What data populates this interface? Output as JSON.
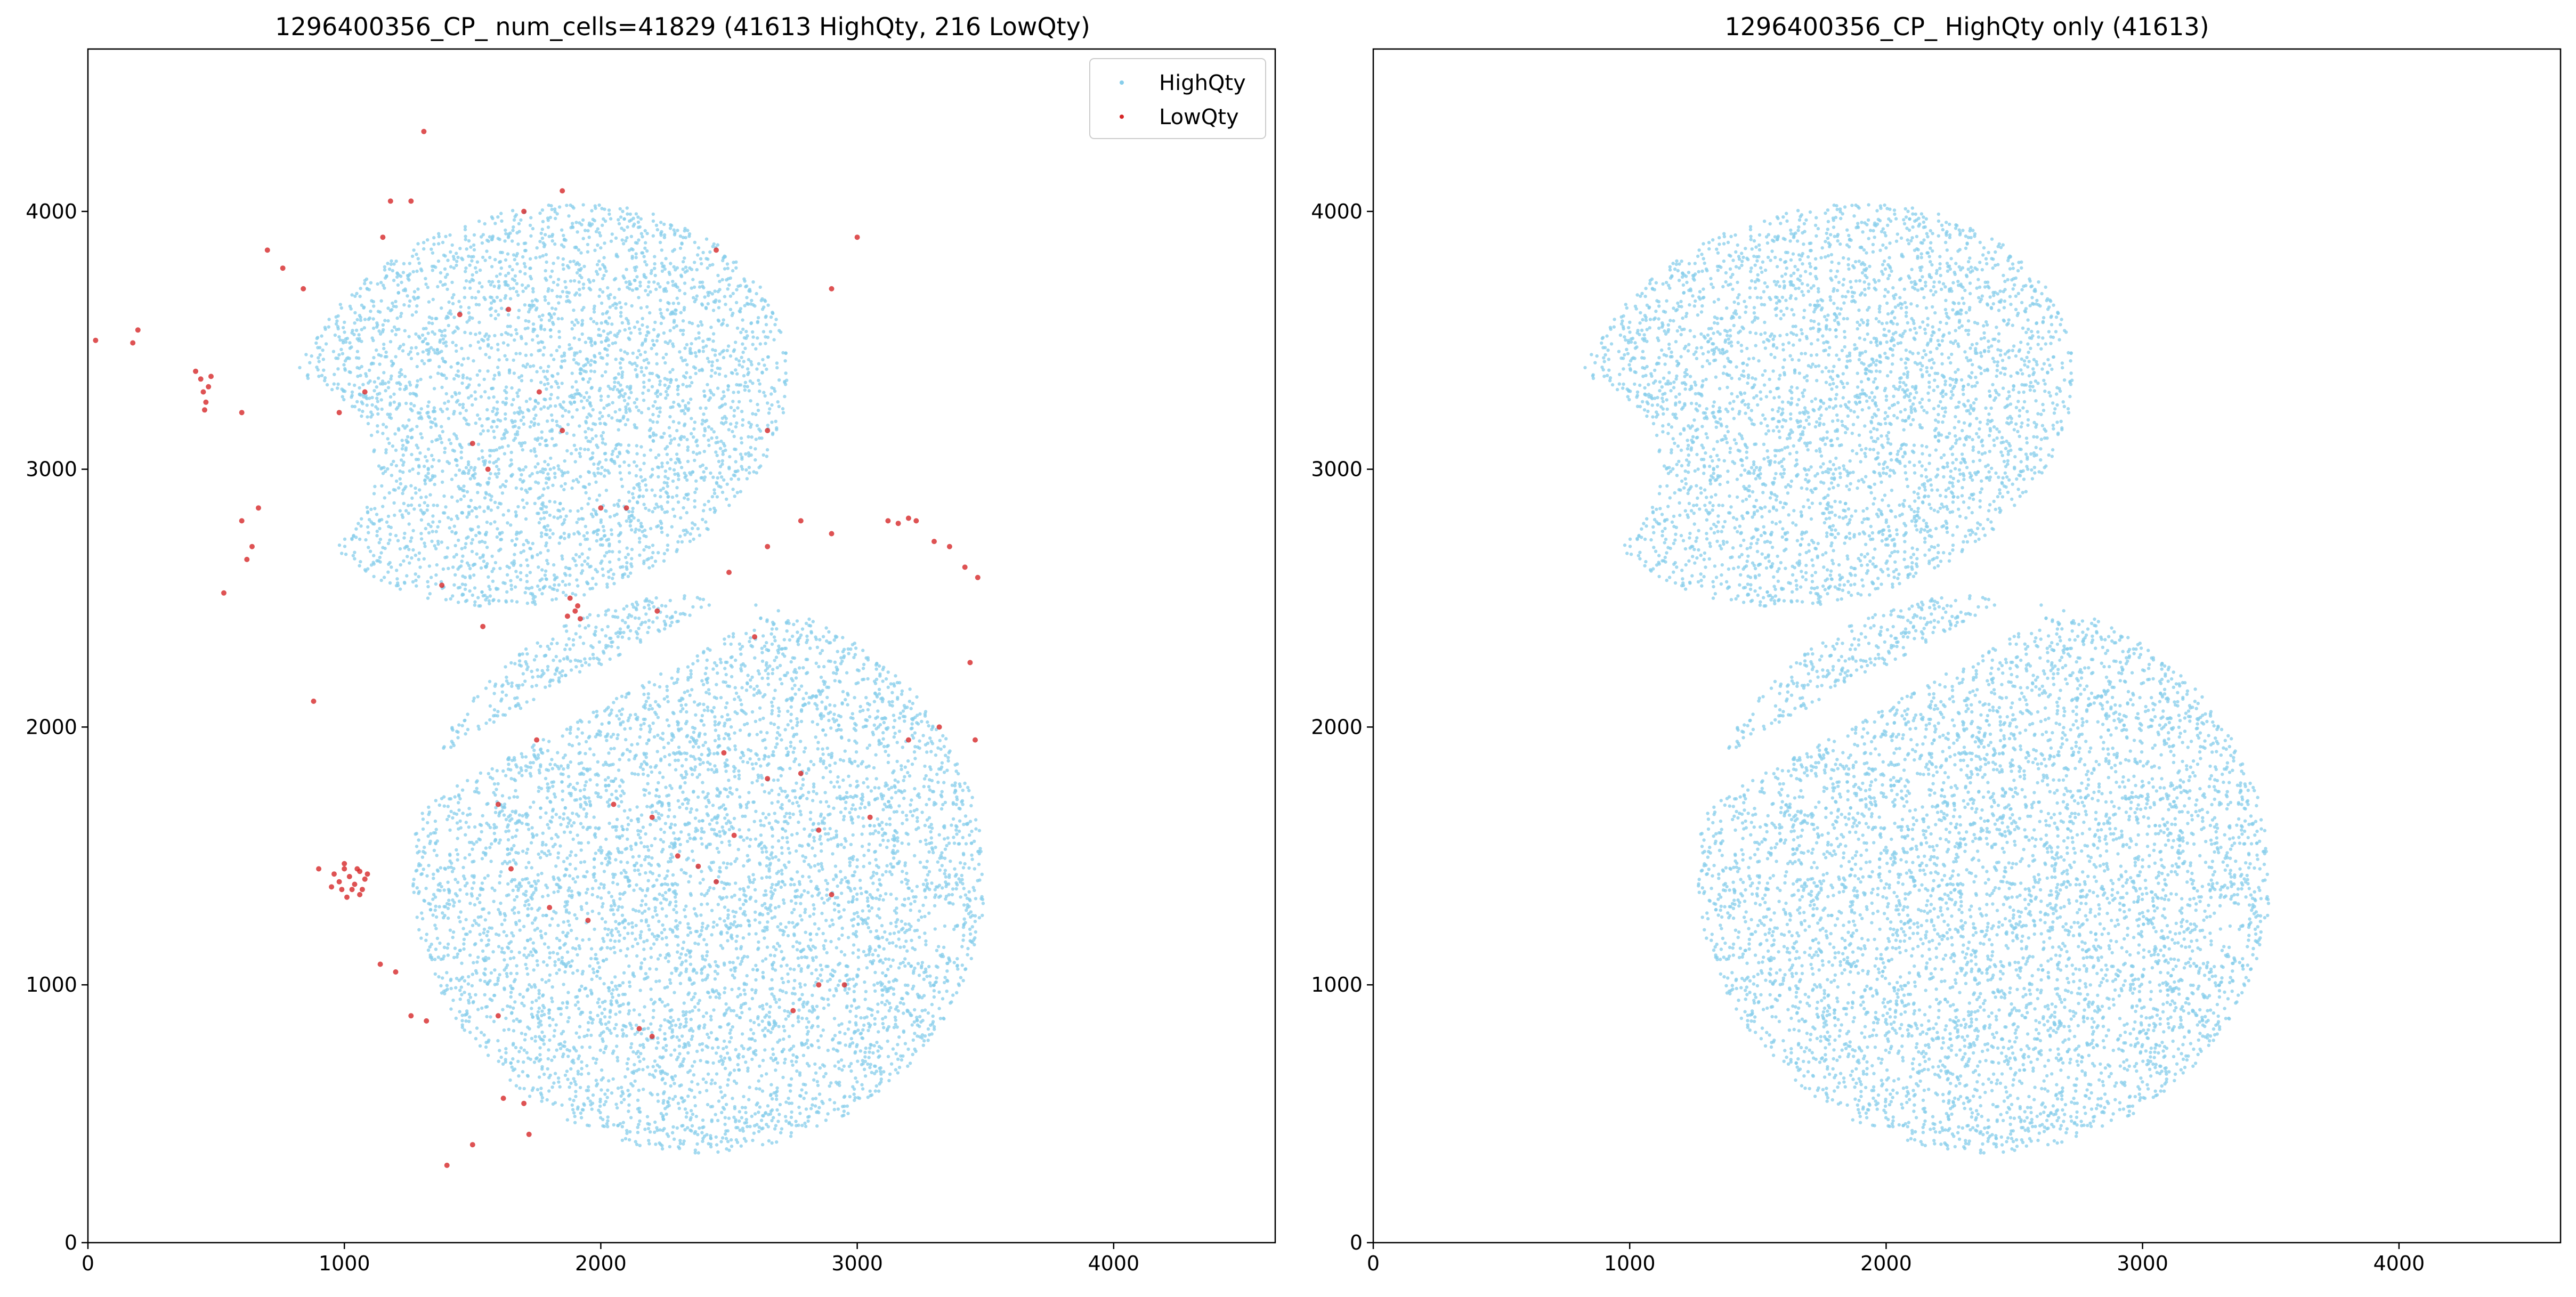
{
  "chart_data": [
    {
      "type": "scatter",
      "title": "1296400356_CP_ num_cells=41829 (41613 HighQty, 216 LowQty)",
      "xlabel": "",
      "ylabel": "",
      "xlim": [
        0,
        4630
      ],
      "ylim": [
        0,
        4630
      ],
      "xticks": [
        0,
        1000,
        2000,
        3000,
        4000
      ],
      "yticks": [
        0,
        1000,
        2000,
        3000,
        4000
      ],
      "grid": false,
      "legend": {
        "position": "top-right",
        "entries": [
          {
            "label": "HighQty",
            "color": "#87ceeb"
          },
          {
            "label": "LowQty",
            "color": "#d62728"
          }
        ]
      },
      "series": [
        {
          "name": "HighQty",
          "color": "#87ceeb",
          "count": 41613,
          "description_regions": [
            {
              "shape": "ring",
              "center": [
                1800,
                3250
              ],
              "rx": 1050,
              "ry": 900
            },
            {
              "shape": "ring",
              "center": [
                2400,
                1400
              ],
              "rx": 1150,
              "ry": 1100
            }
          ]
        },
        {
          "name": "LowQty",
          "color": "#d62728",
          "count": 216,
          "points": [
            [
              30,
              3500
            ],
            [
              175,
              3490
            ],
            [
              195,
              3540
            ],
            [
              420,
              3380
            ],
            [
              440,
              3350
            ],
            [
              450,
              3300
            ],
            [
              460,
              3260
            ],
            [
              470,
              3320
            ],
            [
              455,
              3230
            ],
            [
              480,
              3360
            ],
            [
              600,
              2800
            ],
            [
              640,
              2700
            ],
            [
              665,
              2850
            ],
            [
              530,
              2520
            ],
            [
              620,
              2650
            ],
            [
              700,
              3850
            ],
            [
              760,
              3780
            ],
            [
              840,
              3700
            ],
            [
              980,
              3220
            ],
            [
              1080,
              3300
            ],
            [
              1150,
              3900
            ],
            [
              1180,
              4040
            ],
            [
              1260,
              4040
            ],
            [
              1310,
              4310
            ],
            [
              1450,
              3600
            ],
            [
              1500,
              3100
            ],
            [
              1560,
              3000
            ],
            [
              1640,
              3620
            ],
            [
              1760,
              3300
            ],
            [
              1850,
              3150
            ],
            [
              2000,
              2850
            ],
            [
              1880,
              2500
            ],
            [
              1900,
              2450
            ],
            [
              1920,
              2420
            ],
            [
              1870,
              2430
            ],
            [
              1910,
              2470
            ],
            [
              1380,
              2550
            ],
            [
              1540,
              2390
            ],
            [
              2220,
              2450
            ],
            [
              2500,
              2600
            ],
            [
              2650,
              2700
            ],
            [
              2780,
              2800
            ],
            [
              2900,
              2750
            ],
            [
              3120,
              2800
            ],
            [
              3160,
              2790
            ],
            [
              3200,
              2810
            ],
            [
              3230,
              2800
            ],
            [
              3300,
              2720
            ],
            [
              3360,
              2700
            ],
            [
              3420,
              2620
            ],
            [
              3470,
              2580
            ],
            [
              3440,
              2250
            ],
            [
              3320,
              2000
            ],
            [
              3460,
              1950
            ],
            [
              880,
              2100
            ],
            [
              900,
              1450
            ],
            [
              960,
              1430
            ],
            [
              980,
              1400
            ],
            [
              1000,
              1450
            ],
            [
              1020,
              1420
            ],
            [
              1040,
              1390
            ],
            [
              1060,
              1440
            ],
            [
              1080,
              1410
            ],
            [
              990,
              1370
            ],
            [
              1030,
              1370
            ],
            [
              1070,
              1370
            ],
            [
              1000,
              1470
            ],
            [
              1050,
              1450
            ],
            [
              950,
              1380
            ],
            [
              1010,
              1340
            ],
            [
              1060,
              1350
            ],
            [
              1090,
              1430
            ],
            [
              1140,
              1080
            ],
            [
              1200,
              1050
            ],
            [
              1260,
              880
            ],
            [
              1320,
              860
            ],
            [
              1600,
              1700
            ],
            [
              1650,
              1450
            ],
            [
              1800,
              1300
            ],
            [
              1950,
              1250
            ],
            [
              2050,
              1700
            ],
            [
              2200,
              1650
            ],
            [
              2300,
              1500
            ],
            [
              2380,
              1460
            ],
            [
              2450,
              1400
            ],
            [
              2520,
              1580
            ],
            [
              2650,
              1800
            ],
            [
              2780,
              1820
            ],
            [
              2850,
              1600
            ],
            [
              2900,
              1350
            ],
            [
              2950,
              1000
            ],
            [
              2850,
              1000
            ],
            [
              2750,
              900
            ],
            [
              2200,
              800
            ],
            [
              2150,
              830
            ],
            [
              1600,
              880
            ],
            [
              1620,
              560
            ],
            [
              1700,
              540
            ],
            [
              1720,
              420
            ],
            [
              1500,
              380
            ],
            [
              1400,
              300
            ],
            [
              1750,
              1950
            ],
            [
              2600,
              2350
            ],
            [
              2480,
              1900
            ],
            [
              3050,
              1650
            ],
            [
              3200,
              1950
            ],
            [
              2100,
              2850
            ],
            [
              600,
              3220
            ],
            [
              2650,
              3150
            ],
            [
              2900,
              3700
            ],
            [
              3000,
              3900
            ],
            [
              2450,
              3850
            ],
            [
              1700,
              4000
            ],
            [
              1850,
              4080
            ]
          ]
        }
      ]
    },
    {
      "type": "scatter",
      "title": "1296400356_CP_ HighQty only (41613)",
      "xlabel": "",
      "ylabel": "",
      "xlim": [
        0,
        4630
      ],
      "ylim": [
        0,
        4630
      ],
      "xticks": [
        0,
        1000,
        2000,
        3000,
        4000
      ],
      "yticks": [
        0,
        1000,
        2000,
        3000,
        4000
      ],
      "grid": false,
      "series": [
        {
          "name": "HighQty",
          "color": "#87ceeb",
          "count": 41613,
          "description_regions": [
            {
              "shape": "ring",
              "center": [
                1800,
                3250
              ],
              "rx": 1050,
              "ry": 900
            },
            {
              "shape": "ring",
              "center": [
                2400,
                1400
              ],
              "rx": 1150,
              "ry": 1100
            }
          ]
        }
      ]
    }
  ]
}
